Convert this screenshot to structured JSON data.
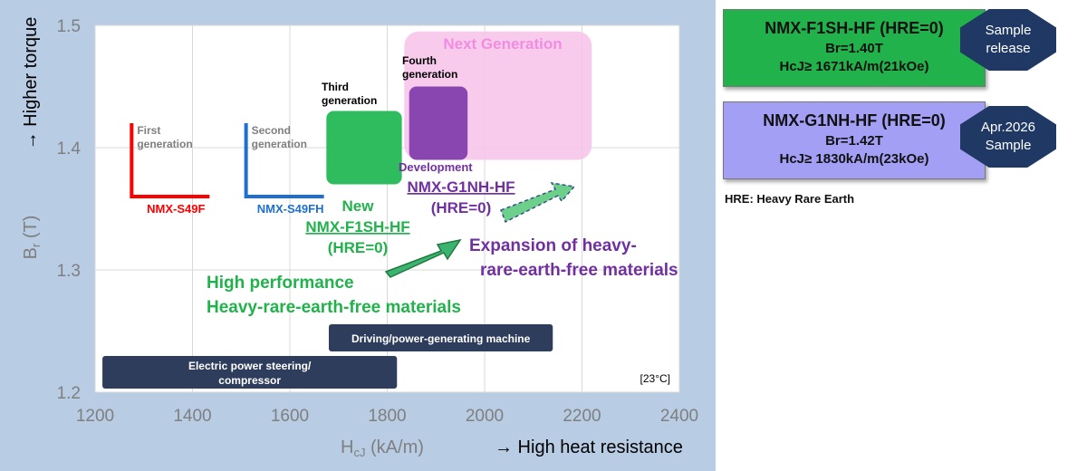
{
  "chart_data": {
    "type": "scatter",
    "xlim": [
      1200,
      2400
    ],
    "ylim": [
      1.2,
      1.5
    ],
    "x_ticks": [
      "1200",
      "1400",
      "1600",
      "1800",
      "2000",
      "2200",
      "2400"
    ],
    "y_ticks": [
      "1.2",
      "1.3",
      "1.4",
      "1.5"
    ],
    "xlabel_main": "H",
    "xlabel_sub": "cJ",
    "xlabel_unit": " (kA/m)",
    "xlabel_note": "→ High heat resistance",
    "ylabel_main": "B",
    "ylabel_sub": "r",
    "ylabel_unit": " (T)",
    "ylabel_note": "→ Higher torque",
    "temperature": "[23°C]",
    "grid": true,
    "series": [
      {
        "name": "NMX-S49F",
        "label_top": "First",
        "label_bottom": "generation",
        "color": "#ff0000",
        "x_range": [
          1275,
          1435
        ],
        "y_range": [
          1.36,
          1.42
        ]
      },
      {
        "name": "NMX-S49FH",
        "label_top": "Second",
        "label_bottom": "generation",
        "color": "#1f6fd0",
        "x_range": [
          1510,
          1670
        ],
        "y_range": [
          1.36,
          1.42
        ]
      }
    ],
    "regions": [
      {
        "label_top": "Third",
        "label_bottom": "generation",
        "color": "#2ebc5e",
        "x_range": [
          1675,
          1830
        ],
        "y_range": [
          1.37,
          1.43
        ]
      },
      {
        "label_top": "Fourth",
        "label_bottom": "generation",
        "color": "#8a46b0",
        "x_range": [
          1845,
          1965
        ],
        "y_range": [
          1.39,
          1.45
        ]
      },
      {
        "label": "Next Generation",
        "color": "#f7c2ea",
        "x_range": [
          1835,
          2220
        ],
        "y_range": [
          1.39,
          1.495
        ]
      }
    ],
    "annotations": {
      "f1sh_new": "New",
      "f1sh_name": "NMX-F1SH-HF",
      "f1sh_hre": "(HRE=0)",
      "g1nh_dev": "Development",
      "g1nh_name": "NMX-G1NH-HF",
      "g1nh_hre": "(HRE=0)",
      "high_perf_1": "High performance",
      "high_perf_2": "Heavy-rare-earth-free materials",
      "expansion_1": "Expansion of heavy-",
      "expansion_2": "rare-earth-free materials"
    },
    "applications": [
      {
        "label": "Driving/power-generating machine",
        "x_range": [
          1680,
          2140
        ],
        "y": 1.246
      },
      {
        "label_1": "Electric power steering/",
        "label_2": "compressor",
        "x_range": [
          1215,
          1820
        ],
        "y": 1.215
      }
    ]
  },
  "products": [
    {
      "name": "NMX-F1SH-HF (HRE=0)",
      "br": "Br=1.40T",
      "hcj": "HcJ≥ 1671kA/m(21kOe)",
      "badge_1": "Sample",
      "badge_2": "release",
      "color": "#22b24c"
    },
    {
      "name": "NMX-G1NH-HF (HRE=0)",
      "br": "Br=1.42T",
      "hcj": "HcJ≥ 1830kA/m(23kOe)",
      "badge_1": "Apr.2026",
      "badge_2": "Sample",
      "color": "#a29ff5"
    }
  ],
  "footnote": "HRE: Heavy Rare Earth"
}
